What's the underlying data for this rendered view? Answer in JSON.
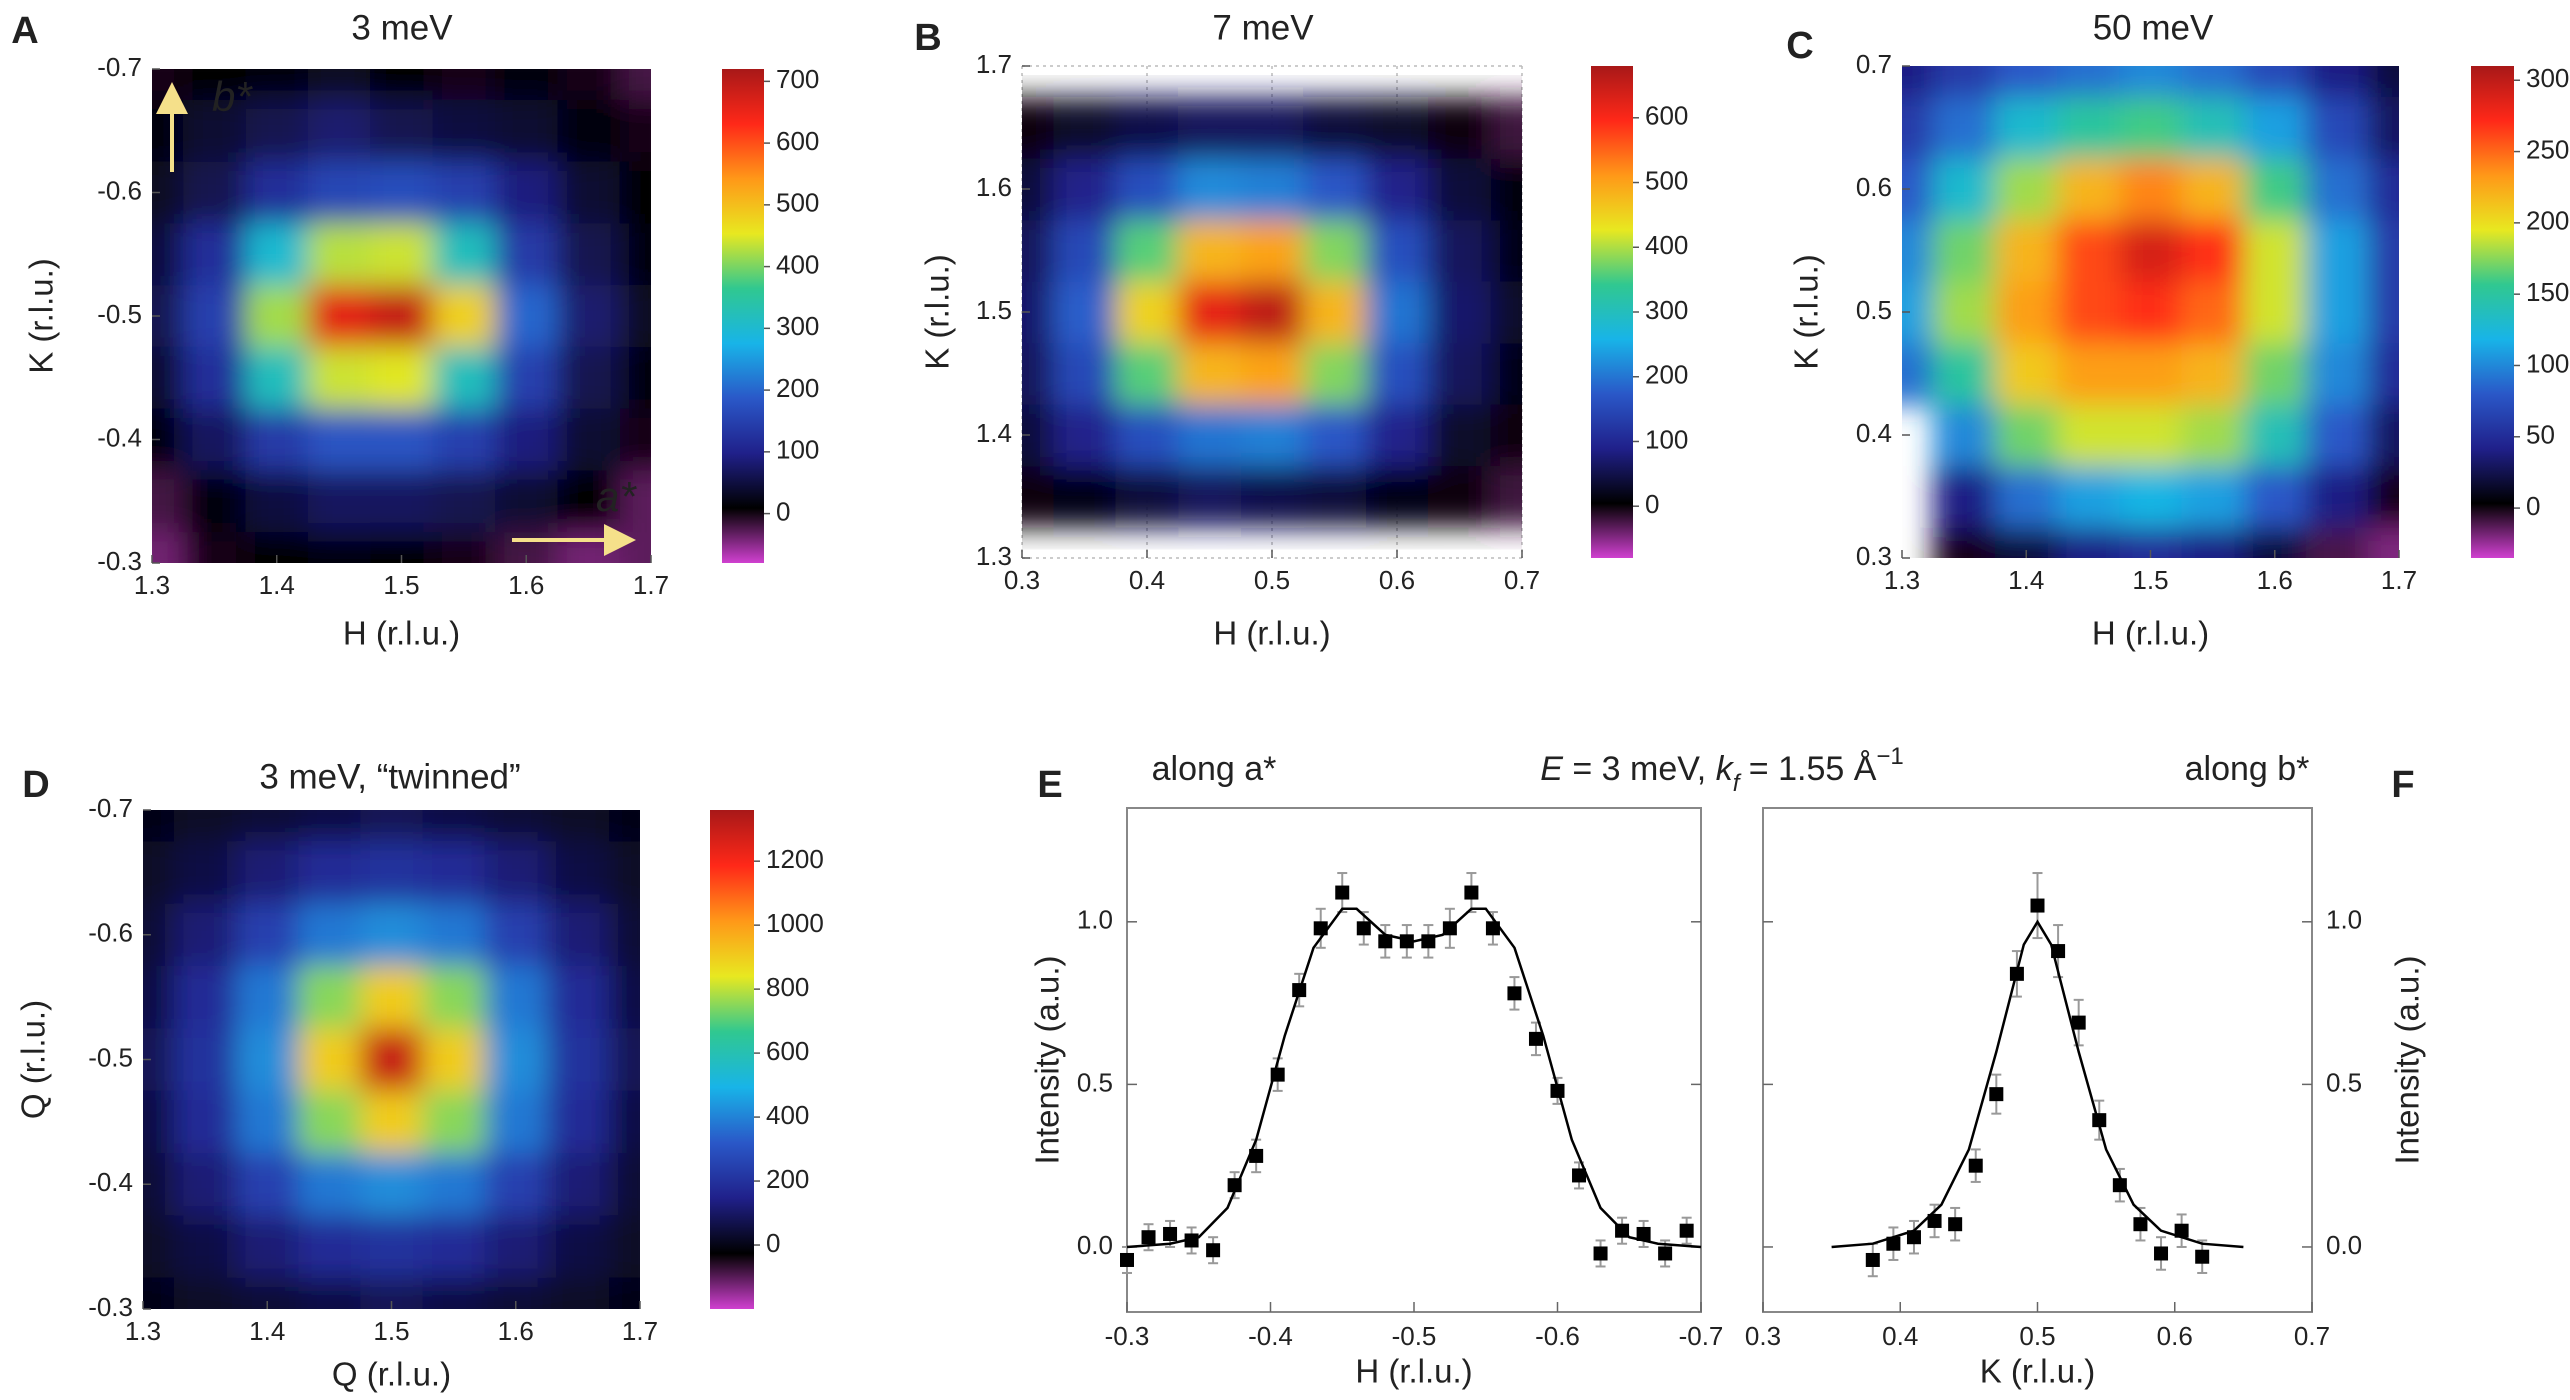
{
  "colormap": [
    "#d040d0",
    "#000000",
    "#20208a",
    "#2a58c8",
    "#18b4e8",
    "#30c890",
    "#e8e820",
    "#ff9818",
    "#ff2818",
    "#a81818"
  ],
  "chart_data": [
    {
      "type": "heatmap",
      "label": "A",
      "title": "3 meV",
      "xlabel": "H (r.l.u.)",
      "ylabel": "K (r.l.u.)",
      "annotations": [
        "b*",
        "a*"
      ],
      "annotation_color": "#f5e08a",
      "xlim": [
        1.3,
        1.7
      ],
      "ylim": [
        -0.3,
        -0.7
      ],
      "xticks": [
        1.3,
        1.4,
        1.5,
        1.6,
        1.7
      ],
      "yticks": [
        -0.3,
        -0.4,
        -0.5,
        -0.6,
        -0.7
      ],
      "zlim": [
        -80,
        720
      ],
      "zticks": [
        0,
        100,
        200,
        300,
        400,
        500,
        600,
        700
      ],
      "x": [
        1.3,
        1.35,
        1.4,
        1.45,
        1.5,
        1.55,
        1.6,
        1.65,
        1.7
      ],
      "y": [
        -0.7,
        -0.65,
        -0.6,
        -0.55,
        -0.5,
        -0.45,
        -0.4,
        -0.35,
        -0.3
      ],
      "z": [
        [
          0,
          10,
          20,
          30,
          10,
          0,
          20,
          0,
          -20
        ],
        [
          20,
          40,
          60,
          80,
          60,
          50,
          40,
          20,
          0
        ],
        [
          30,
          60,
          120,
          160,
          170,
          150,
          90,
          40,
          10
        ],
        [
          50,
          120,
          300,
          430,
          440,
          320,
          140,
          60,
          20
        ],
        [
          60,
          150,
          420,
          660,
          690,
          480,
          200,
          80,
          30
        ],
        [
          40,
          120,
          320,
          440,
          450,
          320,
          150,
          60,
          20
        ],
        [
          20,
          70,
          140,
          180,
          180,
          150,
          90,
          40,
          0
        ],
        [
          -20,
          20,
          50,
          70,
          70,
          60,
          40,
          10,
          -30
        ],
        [
          -40,
          0,
          10,
          20,
          10,
          0,
          -20,
          -40,
          -30
        ]
      ]
    },
    {
      "type": "heatmap",
      "label": "B",
      "title": "7 meV",
      "xlabel": "H (r.l.u.)",
      "ylabel": "K (r.l.u.)",
      "grid": true,
      "xlim": [
        0.3,
        0.7
      ],
      "ylim": [
        1.3,
        1.7
      ],
      "xticks": [
        0.3,
        0.4,
        0.5,
        0.6,
        0.7
      ],
      "yticks": [
        1.3,
        1.4,
        1.5,
        1.6,
        1.7
      ],
      "zlim": [
        -80,
        680
      ],
      "zticks": [
        0,
        100,
        200,
        300,
        400,
        500,
        600
      ],
      "x": [
        0.3,
        0.35,
        0.4,
        0.45,
        0.5,
        0.55,
        0.6,
        0.65,
        0.7
      ],
      "y": [
        1.3,
        1.35,
        1.4,
        1.45,
        1.5,
        1.55,
        1.6,
        1.65,
        1.7
      ],
      "z": [
        [
          null,
          null,
          null,
          null,
          null,
          null,
          null,
          null,
          null
        ],
        [
          0,
          20,
          40,
          60,
          50,
          40,
          20,
          0,
          -20
        ],
        [
          40,
          90,
          160,
          200,
          210,
          170,
          90,
          30,
          0
        ],
        [
          60,
          150,
          360,
          480,
          500,
          380,
          160,
          60,
          20
        ],
        [
          70,
          180,
          450,
          620,
          660,
          480,
          200,
          70,
          30
        ],
        [
          60,
          150,
          360,
          480,
          500,
          380,
          160,
          60,
          20
        ],
        [
          40,
          90,
          160,
          220,
          210,
          170,
          90,
          40,
          10
        ],
        [
          0,
          30,
          50,
          60,
          60,
          40,
          30,
          0,
          -20
        ],
        [
          null,
          null,
          null,
          null,
          null,
          null,
          null,
          null,
          null
        ]
      ]
    },
    {
      "type": "heatmap",
      "label": "C",
      "title": "50 meV",
      "xlabel": "H (r.l.u.)",
      "ylabel": "K (r.l.u.)",
      "xlim": [
        1.3,
        1.7
      ],
      "ylim": [
        0.3,
        0.7
      ],
      "xticks": [
        1.3,
        1.4,
        1.5,
        1.6,
        1.7
      ],
      "yticks": [
        0.3,
        0.4,
        0.5,
        0.6,
        0.7
      ],
      "zlim": [
        -35,
        310
      ],
      "zticks": [
        0,
        50,
        100,
        150,
        200,
        250,
        300
      ],
      "x": [
        1.3,
        1.35,
        1.4,
        1.45,
        1.5,
        1.55,
        1.6,
        1.65,
        1.7
      ],
      "y": [
        0.3,
        0.35,
        0.4,
        0.45,
        0.5,
        0.55,
        0.6,
        0.65,
        0.7
      ],
      "z": [
        [
          null,
          0,
          20,
          40,
          50,
          40,
          20,
          -10,
          -20
        ],
        [
          null,
          40,
          90,
          110,
          120,
          110,
          80,
          40,
          0
        ],
        [
          null,
          100,
          170,
          190,
          190,
          180,
          140,
          80,
          30
        ],
        [
          90,
          150,
          210,
          230,
          230,
          220,
          170,
          100,
          50
        ],
        [
          110,
          180,
          230,
          260,
          270,
          250,
          190,
          110,
          60
        ],
        [
          100,
          170,
          220,
          260,
          290,
          270,
          190,
          110,
          60
        ],
        [
          80,
          130,
          180,
          220,
          240,
          220,
          160,
          90,
          50
        ],
        [
          60,
          90,
          130,
          150,
          160,
          140,
          110,
          70,
          30
        ],
        [
          40,
          60,
          80,
          90,
          100,
          90,
          70,
          40,
          20
        ]
      ]
    },
    {
      "type": "heatmap",
      "label": "D",
      "title": "3 meV, “twinned”",
      "xlabel": "Q (r.l.u.)",
      "ylabel": "Q (r.l.u.)",
      "xlim": [
        1.3,
        1.7
      ],
      "ylim": [
        -0.3,
        -0.7
      ],
      "xticks": [
        1.3,
        1.4,
        1.5,
        1.6,
        1.7
      ],
      "yticks": [
        -0.3,
        -0.4,
        -0.5,
        -0.6,
        -0.7
      ],
      "zlim": [
        -200,
        1360
      ],
      "zticks": [
        0,
        200,
        400,
        600,
        800,
        1000,
        1200
      ],
      "x": [
        1.3,
        1.35,
        1.4,
        1.45,
        1.5,
        1.55,
        1.6,
        1.65,
        1.7
      ],
      "y": [
        -0.7,
        -0.65,
        -0.6,
        -0.55,
        -0.5,
        -0.45,
        -0.4,
        -0.35,
        -0.3
      ],
      "z": [
        [
          0,
          20,
          40,
          60,
          80,
          60,
          40,
          20,
          0
        ],
        [
          20,
          60,
          120,
          180,
          200,
          180,
          120,
          60,
          20
        ],
        [
          40,
          120,
          250,
          380,
          420,
          380,
          250,
          120,
          40
        ],
        [
          60,
          180,
          380,
          750,
          900,
          750,
          380,
          180,
          60
        ],
        [
          80,
          200,
          420,
          900,
          1300,
          900,
          420,
          200,
          80
        ],
        [
          60,
          180,
          380,
          750,
          900,
          750,
          380,
          180,
          60
        ],
        [
          40,
          120,
          250,
          380,
          420,
          380,
          250,
          120,
          40
        ],
        [
          20,
          60,
          120,
          180,
          200,
          180,
          120,
          60,
          20
        ],
        [
          0,
          20,
          40,
          60,
          80,
          60,
          40,
          20,
          0
        ]
      ]
    },
    {
      "type": "scatter",
      "label": "E",
      "note": "along a*",
      "header_parts": [
        "E",
        " = 3 meV, ",
        "k",
        "f",
        " = 1.55 Å",
        "−1"
      ],
      "xlabel": "H (r.l.u.)",
      "ylabel": "Intensity (a.u.)",
      "xlim": [
        -0.3,
        -0.7
      ],
      "ylim": [
        -0.2,
        1.35
      ],
      "xticks": [
        -0.3,
        -0.4,
        -0.5,
        -0.6,
        -0.7
      ],
      "yticks": [
        {
          "value": 0,
          "label": "0.0"
        },
        0.5,
        {
          "value": 1,
          "label": "1.0"
        }
      ],
      "yaxis_side": "left",
      "series": [
        {
          "style": "markers",
          "color": "#000000",
          "error_color": "#999999",
          "x": [
            -0.3,
            -0.315,
            -0.33,
            -0.345,
            -0.36,
            -0.375,
            -0.39,
            -0.405,
            -0.42,
            -0.435,
            -0.45,
            -0.465,
            -0.48,
            -0.495,
            -0.51,
            -0.525,
            -0.54,
            -0.555,
            -0.57,
            -0.585,
            -0.6,
            -0.615,
            -0.63,
            -0.645,
            -0.66,
            -0.675,
            -0.69
          ],
          "values": [
            -0.04,
            0.03,
            0.04,
            0.02,
            -0.01,
            0.19,
            0.28,
            0.53,
            0.79,
            0.98,
            1.09,
            0.98,
            0.94,
            0.94,
            0.94,
            0.98,
            1.09,
            0.98,
            0.78,
            0.64,
            0.48,
            0.22,
            -0.02,
            0.05,
            0.04,
            -0.02,
            0.05
          ],
          "errors": [
            0.04,
            0.04,
            0.04,
            0.04,
            0.04,
            0.04,
            0.05,
            0.05,
            0.05,
            0.06,
            0.06,
            0.05,
            0.05,
            0.05,
            0.05,
            0.06,
            0.06,
            0.05,
            0.05,
            0.05,
            0.04,
            0.04,
            0.04,
            0.04,
            0.04,
            0.04,
            0.04
          ]
        },
        {
          "style": "line",
          "color": "#000000",
          "x": [
            -0.3,
            -0.33,
            -0.35,
            -0.37,
            -0.39,
            -0.41,
            -0.43,
            -0.45,
            -0.46,
            -0.48,
            -0.5,
            -0.52,
            -0.54,
            -0.55,
            -0.57,
            -0.59,
            -0.61,
            -0.63,
            -0.65,
            -0.67,
            -0.7
          ],
          "values": [
            0,
            0.01,
            0.03,
            0.12,
            0.33,
            0.65,
            0.92,
            1.04,
            1.04,
            0.96,
            0.94,
            0.96,
            1.04,
            1.04,
            0.92,
            0.65,
            0.33,
            0.12,
            0.03,
            0.01,
            0
          ]
        }
      ]
    },
    {
      "type": "scatter",
      "label": "F",
      "note": "along b*",
      "xlabel": "K (r.l.u.)",
      "ylabel": "Intensity (a.u.)",
      "xlim": [
        0.3,
        0.7
      ],
      "ylim": [
        -0.2,
        1.35
      ],
      "xticks": [
        0.3,
        0.4,
        0.5,
        0.6,
        0.7
      ],
      "yticks": [
        {
          "value": 0,
          "label": "0.0"
        },
        0.5,
        {
          "value": 1,
          "label": "1.0"
        }
      ],
      "yaxis_side": "right",
      "series": [
        {
          "style": "markers",
          "color": "#000000",
          "error_color": "#999999",
          "x": [
            0.38,
            0.395,
            0.41,
            0.425,
            0.44,
            0.455,
            0.47,
            0.485,
            0.5,
            0.515,
            0.53,
            0.545,
            0.56,
            0.575,
            0.59,
            0.605,
            0.62
          ],
          "values": [
            -0.04,
            0.01,
            0.03,
            0.08,
            0.07,
            0.25,
            0.47,
            0.84,
            1.05,
            0.91,
            0.69,
            0.39,
            0.19,
            0.07,
            -0.02,
            0.05,
            -0.03
          ],
          "errors": [
            0.05,
            0.05,
            0.05,
            0.05,
            0.05,
            0.05,
            0.06,
            0.07,
            0.1,
            0.08,
            0.07,
            0.06,
            0.05,
            0.05,
            0.05,
            0.05,
            0.05
          ]
        },
        {
          "style": "line",
          "color": "#000000",
          "x": [
            0.35,
            0.38,
            0.41,
            0.43,
            0.45,
            0.47,
            0.49,
            0.5,
            0.51,
            0.53,
            0.55,
            0.57,
            0.59,
            0.62,
            0.65
          ],
          "values": [
            0,
            0.01,
            0.05,
            0.13,
            0.3,
            0.6,
            0.93,
            1.0,
            0.93,
            0.6,
            0.3,
            0.13,
            0.05,
            0.01,
            0
          ]
        }
      ]
    }
  ]
}
